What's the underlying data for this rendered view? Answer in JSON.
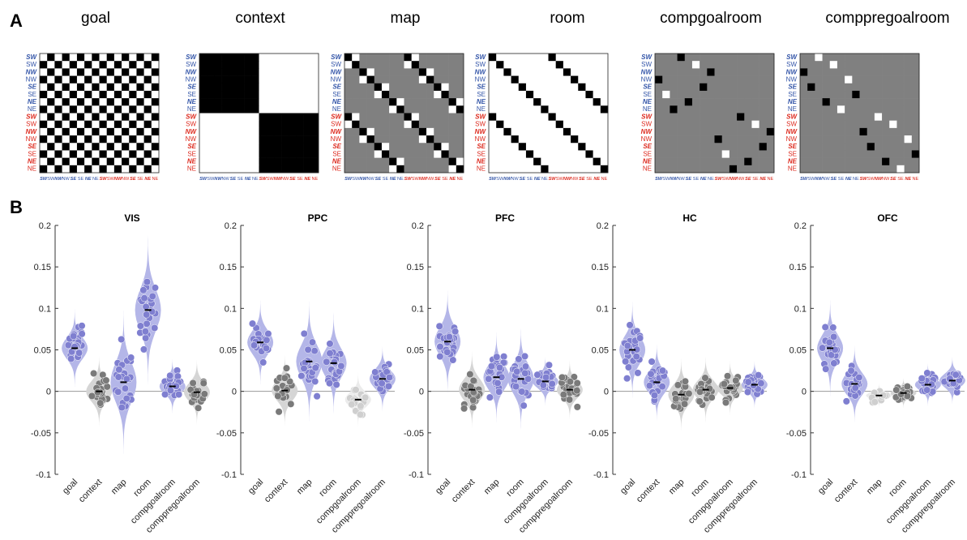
{
  "panel_labels": {
    "a": "A",
    "b": "B"
  },
  "colors": {
    "blue": "#3355a8",
    "red": "#dd2a1e",
    "violin": "#b4b6e8",
    "dot_purple": "#7f7fd0",
    "dot_dark": "#7a7a7a",
    "dot_light": "#cfcfcf",
    "gray_matrix": "#808080"
  },
  "matrices": {
    "labels": [
      "SW",
      "SW",
      "NW",
      "NW",
      "SE",
      "SE",
      "NE",
      "NE",
      "SW",
      "SW",
      "NW",
      "NW",
      "SE",
      "SE",
      "NE",
      "NE"
    ],
    "label_colors": [
      "blue",
      "blue",
      "blue",
      "blue",
      "blue",
      "blue",
      "blue",
      "blue",
      "red",
      "red",
      "red",
      "red",
      "red",
      "red",
      "red",
      "red"
    ],
    "label_bold": [
      true,
      false,
      true,
      false,
      true,
      false,
      true,
      false,
      true,
      false,
      true,
      false,
      true,
      false,
      true,
      false
    ],
    "col_labels": [
      "SW",
      "SW",
      "NW",
      "NW",
      "SE",
      "SE",
      "NE",
      "NE",
      "SW",
      "SW",
      "NW",
      "NW",
      "SE",
      "SE",
      "NE",
      "NE"
    ],
    "items": [
      {
        "title": "goal",
        "kind": "goal"
      },
      {
        "title": "context",
        "kind": "context"
      },
      {
        "title": "map",
        "kind": "map"
      },
      {
        "title": "room",
        "kind": "room"
      },
      {
        "title": "compgoalroom",
        "kind": "compgoalroom"
      },
      {
        "title": "comppregoalroom",
        "kind": "comppregoalroom"
      }
    ]
  },
  "chart_data": [
    {
      "type": "scatter",
      "title": "VIS",
      "ylim": [
        -0.1,
        0.2
      ],
      "yticks": [
        "0.2",
        "0.15",
        "0.1",
        "0.05",
        "0",
        "-0.05",
        "-0.1"
      ],
      "categories": [
        "goal",
        "context",
        "map",
        "room",
        "compgoalroom",
        "comppregoalroom"
      ],
      "means": [
        0.052,
        0.0,
        0.011,
        0.098,
        0.006,
        -0.001
      ],
      "significant": [
        true,
        false,
        true,
        true,
        true,
        false
      ],
      "spread": [
        0.013,
        0.012,
        0.024,
        0.025,
        0.009,
        0.011
      ]
    },
    {
      "type": "scatter",
      "title": "PPC",
      "ylim": [
        -0.1,
        0.2
      ],
      "yticks": [
        "0.2",
        "0.15",
        "0.1",
        "0.05",
        "0",
        "-0.05",
        "-0.1"
      ],
      "categories": [
        "goal",
        "context",
        "map",
        "room",
        "compgoalroom",
        "comppregoalroom"
      ],
      "means": [
        0.059,
        0.001,
        0.036,
        0.034,
        -0.01,
        0.015
      ],
      "significant": [
        true,
        false,
        true,
        true,
        false,
        true
      ],
      "spread": [
        0.014,
        0.012,
        0.02,
        0.017,
        0.009,
        0.011
      ],
      "light": [
        false,
        false,
        false,
        false,
        true,
        false
      ]
    },
    {
      "type": "scatter",
      "title": "PFC",
      "ylim": [
        -0.1,
        0.2
      ],
      "yticks": [
        "0.2",
        "0.15",
        "0.1",
        "0.05",
        "0",
        "-0.05",
        "-0.1"
      ],
      "categories": [
        "goal",
        "context",
        "map",
        "room",
        "compgoalroom",
        "comppregoalroom"
      ],
      "means": [
        0.06,
        0.002,
        0.017,
        0.015,
        0.012,
        0.002
      ],
      "significant": [
        true,
        false,
        true,
        true,
        true,
        false
      ],
      "spread": [
        0.017,
        0.013,
        0.015,
        0.017,
        0.008,
        0.01
      ]
    },
    {
      "type": "scatter",
      "title": "HC",
      "ylim": [
        -0.1,
        0.2
      ],
      "yticks": [
        "0.2",
        "0.15",
        "0.1",
        "0.05",
        "0",
        "-0.05",
        "-0.1"
      ],
      "categories": [
        "goal",
        "context",
        "map",
        "room",
        "compgoalroom",
        "comppregoalroom"
      ],
      "means": [
        0.05,
        0.011,
        -0.004,
        0.002,
        0.004,
        0.008
      ],
      "significant": [
        true,
        true,
        false,
        false,
        false,
        true
      ],
      "spread": [
        0.016,
        0.013,
        0.012,
        0.011,
        0.009,
        0.008
      ]
    },
    {
      "type": "scatter",
      "title": "OFC",
      "ylim": [
        -0.1,
        0.2
      ],
      "yticks": [
        "0.2",
        "0.15",
        "0.1",
        "0.05",
        "0",
        "-0.05",
        "-0.1"
      ],
      "categories": [
        "goal",
        "context",
        "map",
        "room",
        "compgoalroom",
        "comppregoalroom"
      ],
      "means": [
        0.052,
        0.009,
        -0.005,
        -0.002,
        0.008,
        0.013
      ],
      "significant": [
        true,
        true,
        false,
        false,
        true,
        true
      ],
      "spread": [
        0.016,
        0.013,
        0.004,
        0.005,
        0.007,
        0.008
      ],
      "light": [
        false,
        false,
        true,
        false,
        false,
        false
      ]
    }
  ]
}
